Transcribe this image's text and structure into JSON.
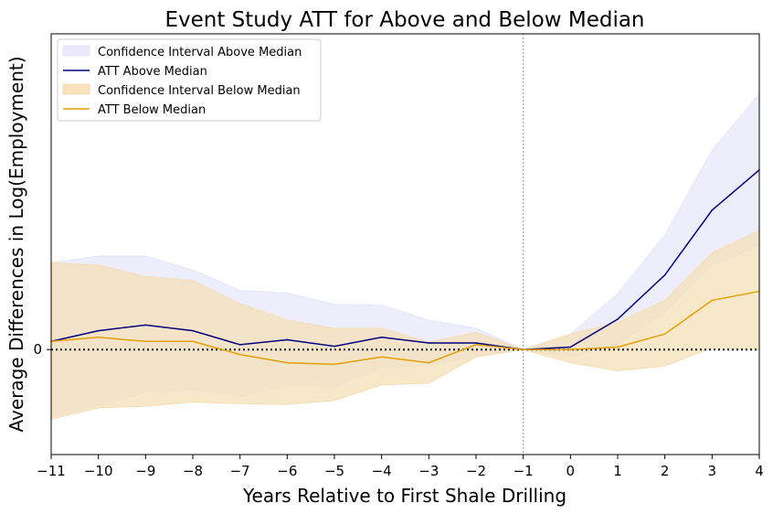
{
  "chart_data": {
    "type": "line",
    "title": "Event Study ATT for Above and Below Median",
    "xlabel": "Years Relative to First Shale Drilling",
    "ylabel": "Average Differences in Log(Employment)",
    "x": [
      -11,
      -10,
      -9,
      -8,
      -7,
      -6,
      -5,
      -4,
      -3,
      -2,
      -1,
      0,
      1,
      2,
      3,
      4
    ],
    "x_ticks": [
      "−11",
      "−10",
      "−9",
      "−8",
      "−7",
      "−6",
      "−5",
      "−4",
      "−3",
      "−2",
      "−1",
      "0",
      "1",
      "2",
      "3",
      "4"
    ],
    "y_ticks": [
      {
        "value": 0,
        "label": "0"
      }
    ],
    "xlim": [
      -11,
      4
    ],
    "ylim": [
      -0.128,
      0.385
    ],
    "grid": false,
    "legend_position": "top-left",
    "reference_lines": {
      "horizontal_y": 0,
      "vertical_x": -1
    },
    "series": [
      {
        "name": "ATT Above Median",
        "kind": "line",
        "color": "#000080",
        "values": [
          0.01,
          0.023,
          0.03,
          0.023,
          0.006,
          0.012,
          0.004,
          0.015,
          0.008,
          0.008,
          0.0,
          0.003,
          0.037,
          0.091,
          0.17,
          0.219
        ]
      },
      {
        "name": "Confidence Interval Above Median",
        "kind": "band",
        "color": "#e6e6fa",
        "lower": [
          -0.083,
          -0.068,
          -0.052,
          -0.049,
          -0.057,
          -0.044,
          -0.046,
          -0.022,
          -0.019,
          -0.009,
          0.0,
          -0.009,
          0.006,
          0.045,
          0.102,
          0.128
        ],
        "upper": [
          0.106,
          0.114,
          0.114,
          0.097,
          0.072,
          0.069,
          0.055,
          0.054,
          0.036,
          0.026,
          0.0,
          0.019,
          0.068,
          0.14,
          0.243,
          0.312
        ]
      },
      {
        "name": "ATT Below Median",
        "kind": "line",
        "color": "#e69f00",
        "values": [
          0.01,
          0.015,
          0.01,
          0.01,
          -0.006,
          -0.016,
          -0.018,
          -0.009,
          -0.016,
          0.006,
          0.0,
          0.0,
          0.003,
          0.019,
          0.06,
          0.071
        ]
      },
      {
        "name": "Confidence Interval Below Median",
        "kind": "band",
        "color": "#f5deb3",
        "lower": [
          -0.085,
          -0.071,
          -0.069,
          -0.064,
          -0.066,
          -0.067,
          -0.062,
          -0.043,
          -0.041,
          -0.009,
          0.0,
          -0.016,
          -0.026,
          -0.02,
          0.002,
          0.0
        ],
        "upper": [
          0.106,
          0.103,
          0.089,
          0.084,
          0.056,
          0.036,
          0.026,
          0.026,
          0.009,
          0.021,
          0.0,
          0.019,
          0.033,
          0.06,
          0.118,
          0.145
        ]
      }
    ],
    "legend": [
      {
        "label": "Confidence Interval Above Median",
        "kind": "band",
        "color": "#e6e6fa"
      },
      {
        "label": "ATT Above Median",
        "kind": "line",
        "color": "#000080"
      },
      {
        "label": "Confidence Interval Below Median",
        "kind": "band",
        "color": "#f5deb3"
      },
      {
        "label": "ATT Below Median",
        "kind": "line",
        "color": "#e69f00"
      }
    ]
  }
}
